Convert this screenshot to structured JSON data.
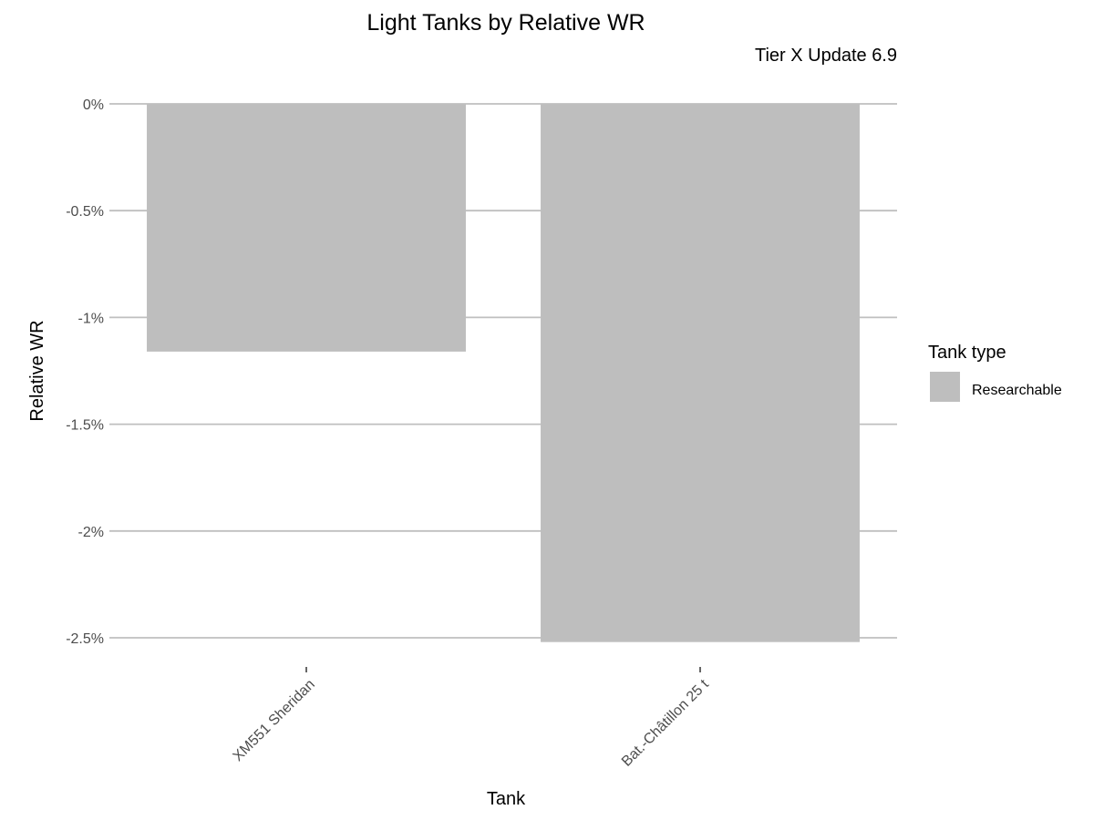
{
  "chart_data": {
    "type": "bar",
    "title": "Light Tanks by Relative WR",
    "subtitle": "Tier X Update 6.9",
    "xlabel": "Tank",
    "ylabel": "Relative WR",
    "categories": [
      "XM551 Sheridan",
      "Bat.-Châtillon 25 t"
    ],
    "series": [
      {
        "name": "Researchable",
        "values": [
          -1.16,
          -2.52
        ],
        "color": "#bebebe"
      }
    ],
    "ylim": [
      -2.5,
      0
    ],
    "yticks": [
      0,
      -0.5,
      -1,
      -1.5,
      -2,
      -2.5
    ],
    "ytick_labels": [
      "0%",
      "-0.5%",
      "-1%",
      "-1.5%",
      "-2%",
      "-2.5%"
    ],
    "grid": true,
    "legend": {
      "title": "Tank type",
      "position": "right"
    },
    "bar_color": "#bebebe",
    "grid_color": "#bfbfbf"
  }
}
